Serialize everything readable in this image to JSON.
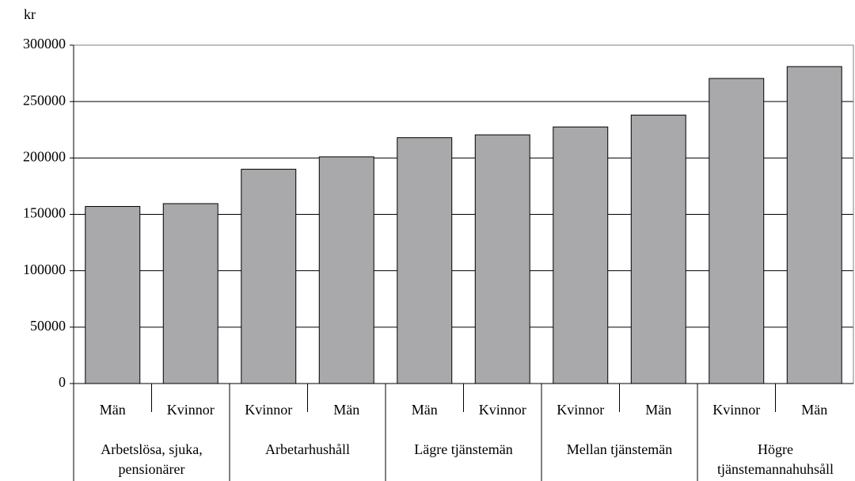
{
  "chart_data": {
    "type": "bar",
    "y_label": "kr",
    "categories": [
      "Män",
      "Kvinnor",
      "Kvinnor",
      "Män",
      "Män",
      "Kvinnor",
      "Kvinnor",
      "Män",
      "Kvinnor",
      "Män"
    ],
    "groups": [
      "Arbetslösa, sjuka,\npensionärer",
      "Arbetarhushåll",
      "Lägre tjänstemän",
      "Mellan tjänstemän",
      "Högre\ntjänstemannahuhsåll"
    ],
    "values": [
      157000,
      159500,
      190000,
      201000,
      218000,
      220500,
      227500,
      238000,
      270500,
      281000
    ],
    "color": "#a9a9ab",
    "ylim": [
      0,
      300000
    ],
    "yticks": [
      0,
      50000,
      100000,
      150000,
      200000,
      250000,
      300000
    ],
    "grid": true
  }
}
